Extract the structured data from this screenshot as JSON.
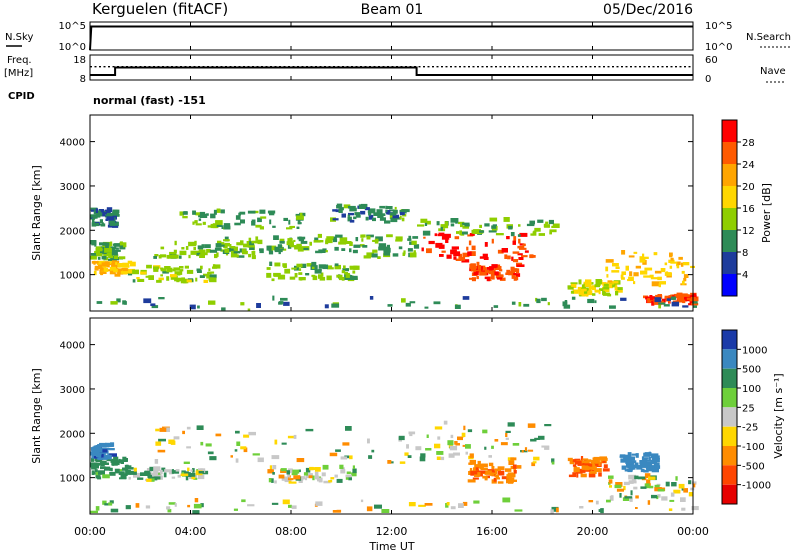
{
  "header": {
    "title_left": "Kerguelen (fitACF)",
    "title_center": "Beam 01",
    "title_right": "05/Dec/2016"
  },
  "nsky_panel": {
    "left_label": "N.Sky",
    "right_label": "N.Search",
    "left_ticks": [
      "10^5",
      "10^0"
    ],
    "right_ticks": [
      "10^5",
      "10^0"
    ]
  },
  "freq_panel": {
    "left_label_1": "Freq.",
    "left_label_2": "[MHz]",
    "right_label": "Nave",
    "left_ticks": [
      "18",
      "8"
    ],
    "right_ticks": [
      "60",
      "0"
    ],
    "cpid_label": "CPID",
    "cpid_value": "normal (fast) -151"
  },
  "power_panel": {
    "ylabel": "Slant Range [km]",
    "colorbar_label": "Power [dB]",
    "colorbar_ticks": [
      "28",
      "24",
      "20",
      "16",
      "12",
      "8",
      "4"
    ],
    "colorbar_colors": [
      "#ff0000",
      "#ff5a00",
      "#ffa500",
      "#ffd700",
      "#8fce00",
      "#2e8b57",
      "#1e3c9c",
      "#0000ff"
    ]
  },
  "velocity_panel": {
    "ylabel": "Slant Range [km]",
    "colorbar_label": "Velocity [m s⁻¹]",
    "colorbar_ticks": [
      "1000",
      "500",
      "100",
      "25",
      "-25",
      "-100",
      "-500",
      "-1000"
    ],
    "colorbar_colors": [
      "#1a3aa8",
      "#3a88c0",
      "#2e8b57",
      "#6ecf3a",
      "#c8c8c8",
      "#ffd700",
      "#ff8c00",
      "#ff4500",
      "#e60000"
    ]
  },
  "x_axis": {
    "ticks": [
      "00:00",
      "04:00",
      "08:00",
      "12:00",
      "16:00",
      "20:00",
      "00:00"
    ],
    "label": "Time UT"
  },
  "chart_data": [
    {
      "type": "line",
      "name": "N.Sky / N.Search",
      "x_hours": [
        0,
        0.05,
        24
      ],
      "y_log10": [
        0,
        4.2,
        4.2
      ],
      "ylim_log10": [
        0,
        5
      ]
    },
    {
      "type": "line",
      "series": [
        {
          "name": "Freq.",
          "x_hours": [
            0,
            1,
            1,
            13,
            13,
            24
          ],
          "values": [
            10,
            10,
            13,
            13,
            10,
            10
          ]
        },
        {
          "name": "Nave",
          "x_hours": [
            0,
            24
          ],
          "values": [
            32,
            32
          ]
        }
      ],
      "ylim_freq": [
        8,
        18
      ],
      "ylim_nave": [
        0,
        60
      ]
    },
    {
      "type": "heatmap",
      "name": "Power",
      "xlim_hours": [
        0,
        24
      ],
      "ylim_km": [
        180,
        4600
      ],
      "yticks_km": [
        1000,
        2000,
        3000,
        4000
      ],
      "cmin": 0,
      "cmax": 30,
      "blobs": [
        {
          "t0": 0.0,
          "t1": 1.6,
          "r0": 950,
          "r1": 1250,
          "v": 18
        },
        {
          "t0": 0.0,
          "t1": 1.2,
          "r0": 1300,
          "r1": 1700,
          "v": 10
        },
        {
          "t0": 0.0,
          "t1": 1.0,
          "r0": 2050,
          "r1": 2450,
          "v": 7
        },
        {
          "t0": 1.5,
          "t1": 5.0,
          "r0": 800,
          "r1": 1150,
          "v": 12
        },
        {
          "t0": 2.5,
          "t1": 6.5,
          "r0": 1350,
          "r1": 1700,
          "v": 11
        },
        {
          "t0": 3.5,
          "t1": 8.5,
          "r0": 2000,
          "r1": 2400,
          "v": 9
        },
        {
          "t0": 5.0,
          "t1": 9.0,
          "r0": 1450,
          "r1": 1800,
          "v": 10
        },
        {
          "t0": 7.0,
          "t1": 10.5,
          "r0": 850,
          "r1": 1200,
          "v": 11
        },
        {
          "t0": 9.0,
          "t1": 13.0,
          "r0": 1350,
          "r1": 1850,
          "v": 10
        },
        {
          "t0": 9.5,
          "t1": 12.5,
          "r0": 2150,
          "r1": 2500,
          "v": 8
        },
        {
          "t0": 13.0,
          "t1": 17.5,
          "r0": 1250,
          "r1": 1900,
          "v": 27
        },
        {
          "t0": 13.0,
          "t1": 18.5,
          "r0": 1850,
          "r1": 2200,
          "v": 10
        },
        {
          "t0": 15.0,
          "t1": 17.0,
          "r0": 850,
          "r1": 1200,
          "v": 25
        },
        {
          "t0": 19.0,
          "t1": 21.0,
          "r0": 500,
          "r1": 800,
          "v": 14
        },
        {
          "t0": 20.5,
          "t1": 24.0,
          "r0": 700,
          "r1": 1500,
          "v": 17
        },
        {
          "t0": 22.0,
          "t1": 24.0,
          "r0": 300,
          "r1": 500,
          "v": 26
        },
        {
          "t0": 0.0,
          "t1": 24.0,
          "r0": 180,
          "r1": 450,
          "v": 8
        }
      ]
    },
    {
      "type": "heatmap",
      "name": "Velocity",
      "xlim_hours": [
        0,
        24
      ],
      "ylim_km": [
        180,
        4600
      ],
      "yticks_km": [
        1000,
        2000,
        3000,
        4000
      ],
      "cmin": -1000,
      "cmax": 1000,
      "blobs": [
        {
          "t0": 0.0,
          "t1": 1.5,
          "r0": 950,
          "r1": 1400,
          "v": 150
        },
        {
          "t0": 0.0,
          "t1": 0.8,
          "r0": 1400,
          "r1": 1700,
          "v": 700
        },
        {
          "t0": 1.5,
          "t1": 4.5,
          "r0": 900,
          "r1": 1150,
          "v": 60
        },
        {
          "t0": 2.5,
          "t1": 13.0,
          "r0": 1300,
          "r1": 2100,
          "v": 0
        },
        {
          "t0": 7.0,
          "t1": 10.5,
          "r0": 850,
          "r1": 1200,
          "v": 0
        },
        {
          "t0": 13.0,
          "t1": 18.5,
          "r0": 1250,
          "r1": 2200,
          "v": 0
        },
        {
          "t0": 15.0,
          "t1": 17.0,
          "r0": 850,
          "r1": 1300,
          "v": -250
        },
        {
          "t0": 19.0,
          "t1": 20.5,
          "r0": 1000,
          "r1": 1400,
          "v": -300
        },
        {
          "t0": 21.0,
          "t1": 22.5,
          "r0": 1100,
          "r1": 1500,
          "v": 600
        },
        {
          "t0": 20.5,
          "t1": 24.0,
          "r0": 450,
          "r1": 1000,
          "v": 0
        },
        {
          "t0": 0.0,
          "t1": 24.0,
          "r0": 180,
          "r1": 450,
          "v": 0
        }
      ]
    }
  ]
}
